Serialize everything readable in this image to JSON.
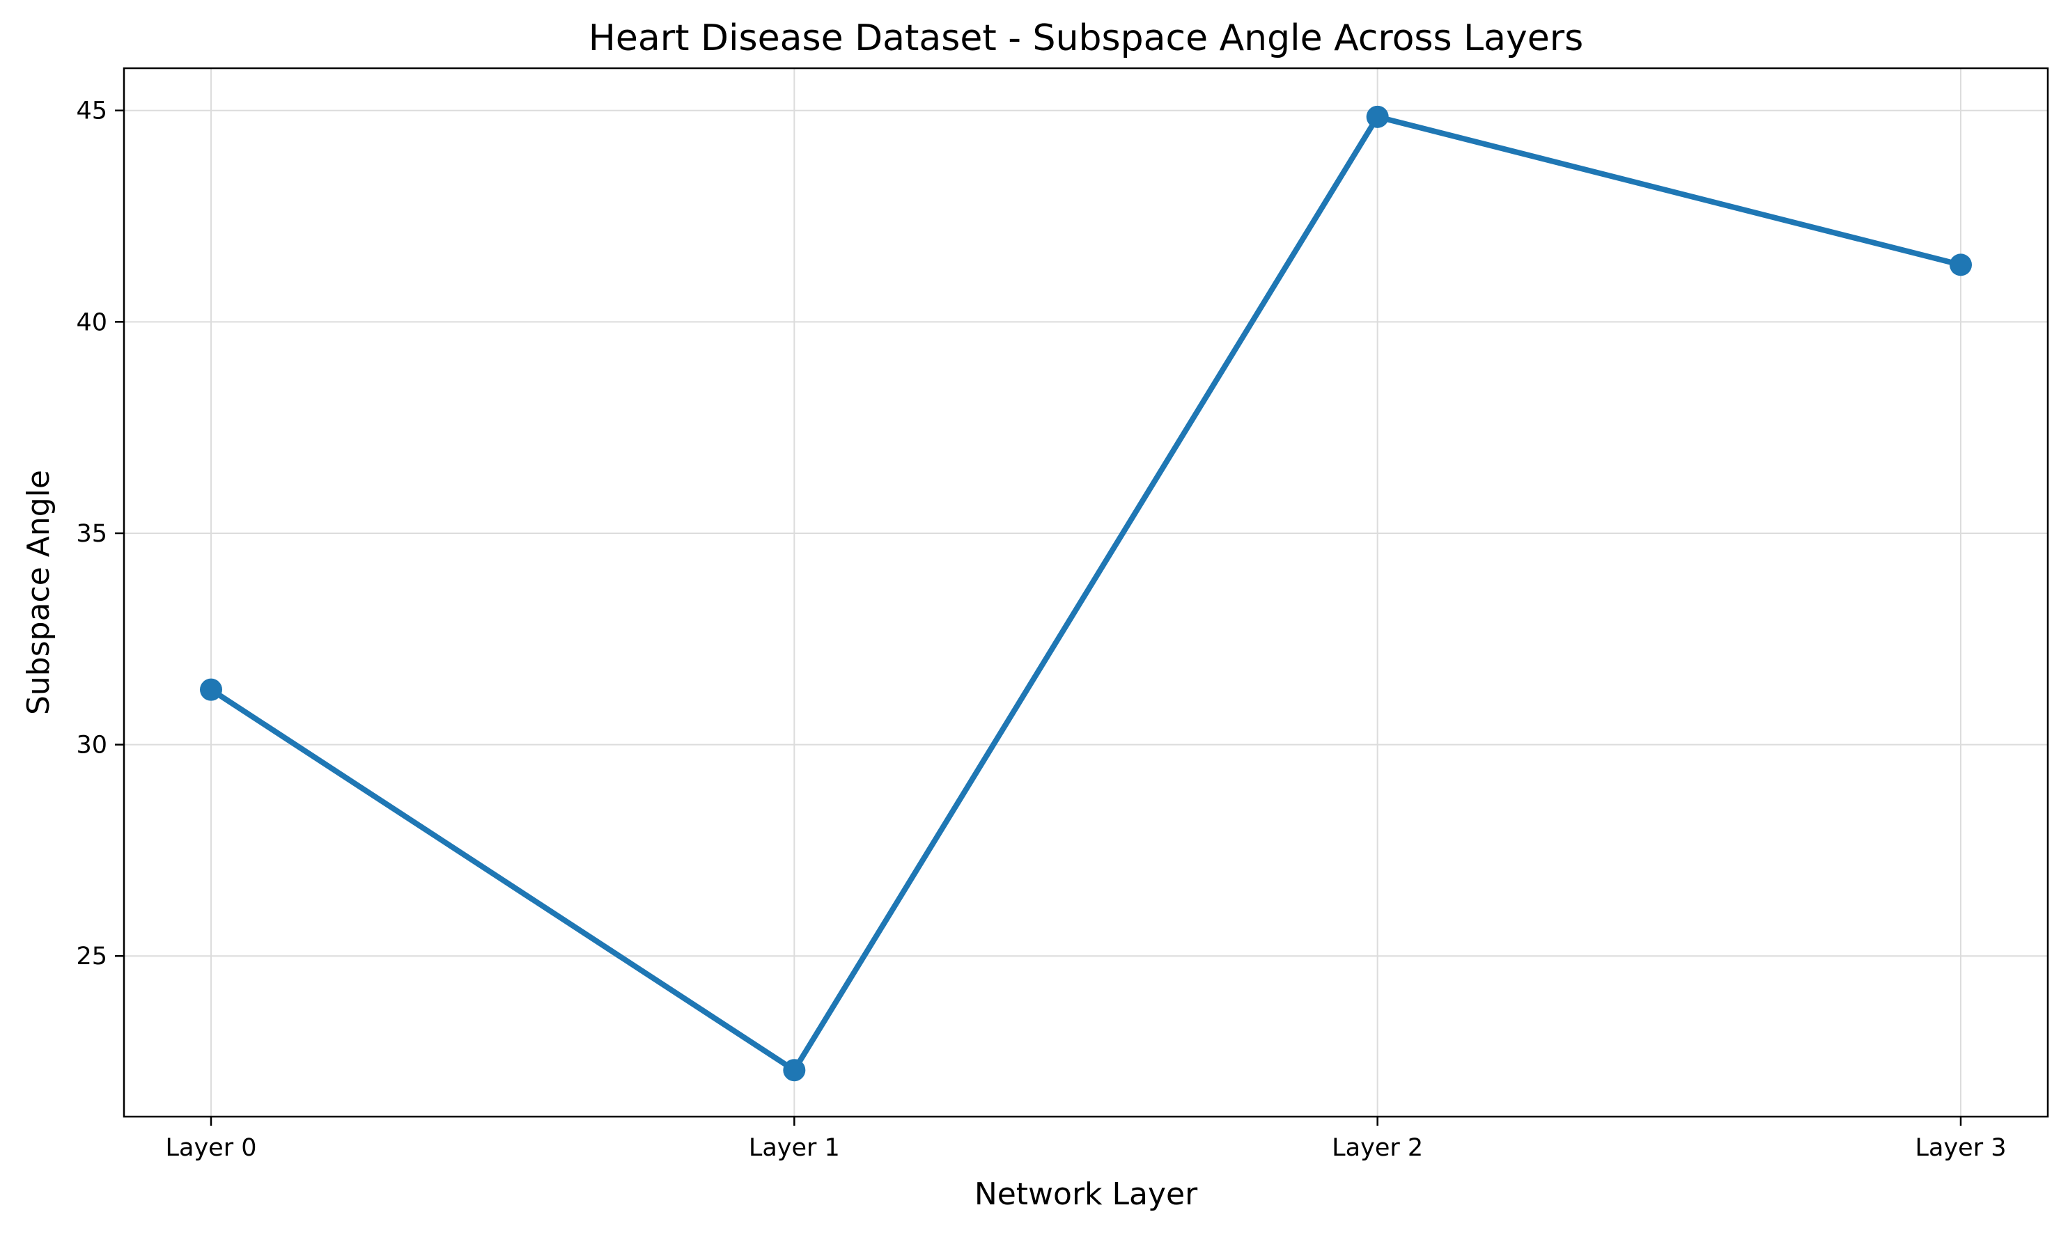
{
  "chart_data": {
    "type": "line",
    "title": "Heart Disease Dataset - Subspace Angle Across Layers",
    "xlabel": "Network Layer",
    "ylabel": "Subspace Angle",
    "categories": [
      "Layer 0",
      "Layer 1",
      "Layer 2",
      "Layer 3"
    ],
    "series": [
      {
        "values": [
          31.3,
          22.3,
          44.85,
          41.35
        ],
        "color": "#1f77b4",
        "marker": "circle"
      }
    ],
    "ylim": [
      21.2,
      46.0
    ],
    "yticks": [
      25,
      30,
      35,
      40,
      45
    ],
    "grid": true,
    "legend": "none"
  }
}
